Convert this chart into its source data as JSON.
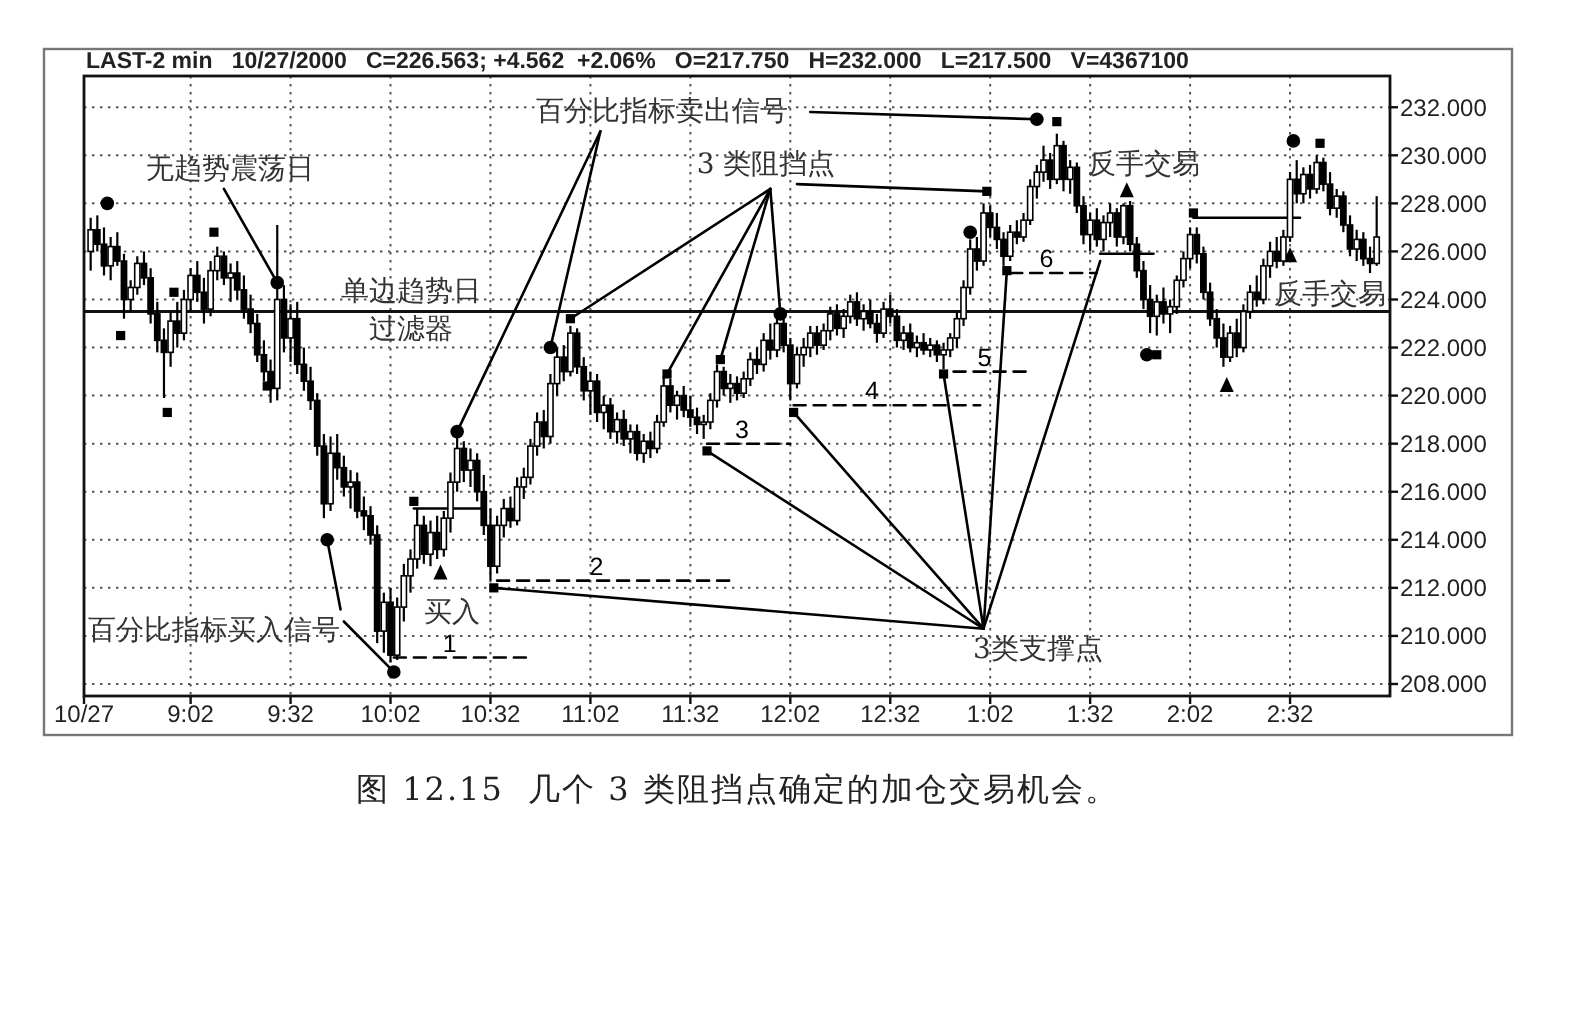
{
  "chart_data": {
    "type": "candlestick",
    "title": "图 12.15  几个 3 类阻挡点确定的加仓交易机会。",
    "subtitle": "LAST-2 min   10/27/2000   C=226.563; +4.562  +2.06%   O=217.750   H=232.000   L=217.500   V=4367100",
    "color": "#000000",
    "x": [
      "2000-10-27T08:32",
      "2000-10-27T08:34",
      "2000-10-27T08:36",
      "2000-10-27T08:38",
      "2000-10-27T08:40",
      "2000-10-27T08:42",
      "2000-10-27T08:44",
      "2000-10-27T08:46",
      "2000-10-27T08:48",
      "2000-10-27T08:50",
      "2000-10-27T08:52",
      "2000-10-27T08:54",
      "2000-10-27T08:56",
      "2000-10-27T08:58",
      "2000-10-27T09:00",
      "2000-10-27T09:02",
      "2000-10-27T09:04",
      "2000-10-27T09:06",
      "2000-10-27T09:08",
      "2000-10-27T09:10",
      "2000-10-27T09:12",
      "2000-10-27T09:14",
      "2000-10-27T09:16",
      "2000-10-27T09:18",
      "2000-10-27T09:20",
      "2000-10-27T09:22",
      "2000-10-27T09:24",
      "2000-10-27T09:26",
      "2000-10-27T09:28",
      "2000-10-27T09:30",
      "2000-10-27T09:32",
      "2000-10-27T09:34",
      "2000-10-27T09:36",
      "2000-10-27T09:38",
      "2000-10-27T09:40",
      "2000-10-27T09:42",
      "2000-10-27T09:44",
      "2000-10-27T09:46",
      "2000-10-27T09:48",
      "2000-10-27T09:50",
      "2000-10-27T09:52",
      "2000-10-27T09:54",
      "2000-10-27T09:56",
      "2000-10-27T09:58",
      "2000-10-27T10:00",
      "2000-10-27T10:02",
      "2000-10-27T10:04",
      "2000-10-27T10:06",
      "2000-10-27T10:08",
      "2000-10-27T10:10",
      "2000-10-27T10:12",
      "2000-10-27T10:14",
      "2000-10-27T10:16",
      "2000-10-27T10:18",
      "2000-10-27T10:20",
      "2000-10-27T10:22",
      "2000-10-27T10:24",
      "2000-10-27T10:26",
      "2000-10-27T10:28",
      "2000-10-27T10:30",
      "2000-10-27T10:32",
      "2000-10-27T10:34",
      "2000-10-27T10:36",
      "2000-10-27T10:38",
      "2000-10-27T10:40",
      "2000-10-27T10:42",
      "2000-10-27T10:44",
      "2000-10-27T10:46",
      "2000-10-27T10:48",
      "2000-10-27T10:50",
      "2000-10-27T10:52",
      "2000-10-27T10:54",
      "2000-10-27T10:56",
      "2000-10-27T10:58",
      "2000-10-27T11:00",
      "2000-10-27T11:02",
      "2000-10-27T11:04",
      "2000-10-27T11:06",
      "2000-10-27T11:08",
      "2000-10-27T11:10",
      "2000-10-27T11:12",
      "2000-10-27T11:14",
      "2000-10-27T11:16",
      "2000-10-27T11:18",
      "2000-10-27T11:20",
      "2000-10-27T11:22",
      "2000-10-27T11:24",
      "2000-10-27T11:26",
      "2000-10-27T11:28",
      "2000-10-27T11:30",
      "2000-10-27T11:32",
      "2000-10-27T11:34",
      "2000-10-27T11:36",
      "2000-10-27T11:38",
      "2000-10-27T11:40",
      "2000-10-27T11:42",
      "2000-10-27T11:44",
      "2000-10-27T11:46",
      "2000-10-27T11:48",
      "2000-10-27T11:50",
      "2000-10-27T11:52",
      "2000-10-27T11:54",
      "2000-10-27T11:56",
      "2000-10-27T11:58",
      "2000-10-27T12:00",
      "2000-10-27T12:02",
      "2000-10-27T12:04",
      "2000-10-27T12:06",
      "2000-10-27T12:08",
      "2000-10-27T12:10",
      "2000-10-27T12:12",
      "2000-10-27T12:14",
      "2000-10-27T12:16",
      "2000-10-27T12:18",
      "2000-10-27T12:20",
      "2000-10-27T12:22",
      "2000-10-27T12:24",
      "2000-10-27T12:26",
      "2000-10-27T12:28",
      "2000-10-27T12:30",
      "2000-10-27T12:32",
      "2000-10-27T12:34",
      "2000-10-27T12:36",
      "2000-10-27T12:38",
      "2000-10-27T12:40",
      "2000-10-27T12:42",
      "2000-10-27T12:44",
      "2000-10-27T12:46",
      "2000-10-27T12:48",
      "2000-10-27T12:50",
      "2000-10-27T12:52",
      "2000-10-27T12:54",
      "2000-10-27T12:56",
      "2000-10-27T12:58",
      "2000-10-27T13:00",
      "2000-10-27T13:02",
      "2000-10-27T13:04",
      "2000-10-27T13:06",
      "2000-10-27T13:08",
      "2000-10-27T13:10",
      "2000-10-27T13:12",
      "2000-10-27T13:14",
      "2000-10-27T13:16",
      "2000-10-27T13:18",
      "2000-10-27T13:20",
      "2000-10-27T13:22",
      "2000-10-27T13:24",
      "2000-10-27T13:26",
      "2000-10-27T13:28",
      "2000-10-27T13:30",
      "2000-10-27T13:32",
      "2000-10-27T13:34",
      "2000-10-27T13:36",
      "2000-10-27T13:38",
      "2000-10-27T13:40",
      "2000-10-27T13:42",
      "2000-10-27T13:44",
      "2000-10-27T13:46",
      "2000-10-27T13:48",
      "2000-10-27T13:50",
      "2000-10-27T13:52",
      "2000-10-27T13:54",
      "2000-10-27T13:56",
      "2000-10-27T13:58",
      "2000-10-27T14:00",
      "2000-10-27T14:02",
      "2000-10-27T14:04",
      "2000-10-27T14:06",
      "2000-10-27T14:08",
      "2000-10-27T14:10",
      "2000-10-27T14:12",
      "2000-10-27T14:14",
      "2000-10-27T14:16",
      "2000-10-27T14:18",
      "2000-10-27T14:20",
      "2000-10-27T14:22",
      "2000-10-27T14:24",
      "2000-10-27T14:26",
      "2000-10-27T14:28",
      "2000-10-27T14:30",
      "2000-10-27T14:32",
      "2000-10-27T14:34",
      "2000-10-27T14:36",
      "2000-10-27T14:38",
      "2000-10-27T14:40",
      "2000-10-27T14:42",
      "2000-10-27T14:44",
      "2000-10-27T14:46",
      "2000-10-27T14:48",
      "2000-10-27T14:50",
      "2000-10-27T14:52",
      "2000-10-27T14:54",
      "2000-10-27T14:56",
      "2000-10-27T14:58"
    ],
    "ohlc": [
      [
        226.0,
        227.4,
        225.2,
        226.9
      ],
      [
        226.9,
        227.5,
        226.0,
        226.3
      ],
      [
        226.3,
        227.0,
        225.0,
        225.4
      ],
      [
        225.4,
        226.6,
        224.8,
        226.2
      ],
      [
        226.2,
        226.8,
        225.4,
        225.6
      ],
      [
        225.6,
        225.9,
        223.2,
        224.0
      ],
      [
        224.0,
        224.8,
        223.5,
        224.5
      ],
      [
        224.5,
        225.8,
        224.2,
        225.5
      ],
      [
        225.5,
        226.0,
        224.6,
        224.9
      ],
      [
        224.9,
        225.3,
        223.0,
        223.4
      ],
      [
        223.4,
        223.9,
        221.8,
        222.3
      ],
      [
        222.3,
        222.8,
        219.9,
        221.8
      ],
      [
        221.8,
        223.5,
        221.2,
        223.1
      ],
      [
        223.1,
        223.9,
        222.0,
        222.6
      ],
      [
        222.6,
        224.4,
        222.3,
        224.0
      ],
      [
        224.0,
        225.3,
        223.5,
        225.0
      ],
      [
        225.0,
        225.6,
        223.9,
        224.3
      ],
      [
        224.3,
        224.9,
        223.0,
        223.6
      ],
      [
        223.6,
        225.6,
        223.3,
        225.2
      ],
      [
        225.2,
        226.2,
        224.8,
        225.8
      ],
      [
        225.8,
        226.0,
        224.6,
        224.9
      ],
      [
        224.9,
        225.5,
        223.9,
        225.1
      ],
      [
        225.1,
        225.6,
        224.0,
        224.4
      ],
      [
        224.4,
        225.0,
        223.2,
        223.6
      ],
      [
        223.6,
        224.2,
        222.6,
        223.0
      ],
      [
        223.0,
        223.4,
        221.4,
        221.7
      ],
      [
        221.7,
        222.3,
        220.6,
        221.0
      ],
      [
        221.0,
        221.5,
        219.7,
        220.3
      ],
      [
        220.3,
        227.1,
        219.8,
        224.0
      ],
      [
        224.0,
        224.6,
        221.8,
        222.4
      ],
      [
        222.4,
        223.8,
        221.4,
        223.2
      ],
      [
        223.2,
        223.9,
        220.9,
        221.3
      ],
      [
        221.3,
        222.0,
        220.2,
        220.6
      ],
      [
        220.6,
        221.2,
        219.4,
        219.8
      ],
      [
        219.8,
        220.1,
        217.5,
        217.9
      ],
      [
        217.9,
        218.4,
        214.9,
        215.5
      ],
      [
        215.5,
        218.3,
        215.2,
        217.6
      ],
      [
        217.6,
        218.4,
        216.5,
        217.0
      ],
      [
        217.0,
        217.5,
        215.8,
        216.2
      ],
      [
        216.2,
        216.9,
        215.3,
        216.4
      ],
      [
        216.4,
        216.8,
        214.9,
        215.2
      ],
      [
        215.2,
        215.8,
        214.4,
        215.0
      ],
      [
        215.0,
        215.4,
        213.8,
        214.2
      ],
      [
        214.2,
        214.6,
        209.7,
        210.2
      ],
      [
        210.2,
        211.8,
        209.3,
        211.4
      ],
      [
        211.4,
        212.0,
        208.9,
        209.2
      ],
      [
        209.2,
        211.6,
        209.0,
        211.2
      ],
      [
        211.2,
        213.0,
        210.6,
        212.5
      ],
      [
        212.5,
        213.6,
        211.8,
        213.2
      ],
      [
        213.2,
        215.3,
        212.8,
        214.6
      ],
      [
        214.6,
        215.0,
        213.0,
        213.4
      ],
      [
        213.4,
        214.8,
        212.9,
        214.3
      ],
      [
        214.3,
        215.0,
        213.2,
        213.6
      ],
      [
        213.6,
        215.2,
        213.3,
        214.9
      ],
      [
        214.9,
        216.8,
        214.3,
        216.4
      ],
      [
        216.4,
        218.3,
        216.0,
        217.8
      ],
      [
        217.8,
        218.1,
        216.4,
        216.9
      ],
      [
        216.9,
        217.8,
        216.2,
        217.3
      ],
      [
        217.3,
        217.6,
        215.6,
        216.0
      ],
      [
        216.0,
        216.7,
        214.2,
        214.6
      ],
      [
        214.6,
        215.3,
        212.3,
        212.9
      ],
      [
        212.9,
        215.0,
        212.6,
        214.6
      ],
      [
        214.6,
        215.7,
        214.1,
        215.3
      ],
      [
        215.3,
        215.8,
        214.5,
        214.8
      ],
      [
        214.8,
        216.6,
        214.6,
        216.2
      ],
      [
        216.2,
        217.0,
        215.7,
        216.6
      ],
      [
        216.6,
        218.2,
        216.3,
        217.9
      ],
      [
        217.9,
        219.3,
        217.5,
        218.9
      ],
      [
        218.9,
        219.4,
        217.8,
        218.3
      ],
      [
        218.3,
        220.9,
        218.0,
        220.5
      ],
      [
        220.5,
        222.0,
        220.0,
        221.6
      ],
      [
        221.6,
        222.1,
        220.6,
        221.0
      ],
      [
        221.0,
        222.9,
        220.8,
        222.6
      ],
      [
        222.6,
        222.8,
        220.9,
        221.2
      ],
      [
        221.2,
        221.6,
        219.8,
        220.2
      ],
      [
        220.2,
        221.0,
        219.2,
        220.6
      ],
      [
        220.6,
        220.9,
        218.9,
        219.3
      ],
      [
        219.3,
        220.0,
        218.6,
        219.6
      ],
      [
        219.6,
        219.9,
        218.2,
        218.5
      ],
      [
        218.5,
        219.3,
        218.0,
        219.0
      ],
      [
        219.0,
        219.4,
        217.9,
        218.2
      ],
      [
        218.2,
        218.8,
        217.6,
        218.5
      ],
      [
        218.5,
        218.8,
        217.3,
        217.6
      ],
      [
        217.6,
        218.4,
        217.2,
        218.1
      ],
      [
        218.1,
        218.5,
        217.4,
        217.8
      ],
      [
        217.8,
        219.2,
        217.6,
        218.9
      ],
      [
        218.9,
        220.8,
        218.7,
        220.4
      ],
      [
        220.4,
        220.7,
        219.3,
        219.6
      ],
      [
        219.6,
        220.2,
        219.0,
        220.0
      ],
      [
        220.0,
        220.4,
        219.1,
        219.4
      ],
      [
        219.4,
        220.0,
        218.7,
        219.1
      ],
      [
        219.1,
        219.5,
        218.4,
        218.8
      ],
      [
        218.8,
        219.2,
        218.2,
        218.9
      ],
      [
        218.9,
        220.1,
        218.6,
        219.8
      ],
      [
        219.8,
        221.3,
        219.5,
        221.0
      ],
      [
        221.0,
        221.2,
        220.0,
        220.3
      ],
      [
        220.3,
        220.9,
        219.7,
        220.5
      ],
      [
        220.5,
        220.8,
        219.8,
        220.1
      ],
      [
        220.1,
        221.0,
        219.9,
        220.7
      ],
      [
        220.7,
        221.8,
        220.4,
        221.5
      ],
      [
        221.5,
        222.0,
        220.9,
        221.3
      ],
      [
        221.3,
        222.6,
        221.0,
        222.3
      ],
      [
        222.3,
        223.0,
        221.5,
        221.9
      ],
      [
        221.9,
        223.3,
        221.6,
        223.0
      ],
      [
        223.0,
        223.4,
        221.8,
        222.1
      ],
      [
        222.1,
        222.4,
        219.8,
        220.5
      ],
      [
        220.5,
        222.0,
        220.3,
        221.7
      ],
      [
        221.7,
        222.4,
        221.2,
        222.0
      ],
      [
        222.0,
        222.9,
        221.6,
        222.6
      ],
      [
        222.6,
        222.9,
        221.7,
        222.1
      ],
      [
        222.1,
        223.0,
        221.9,
        222.7
      ],
      [
        222.7,
        223.7,
        222.3,
        223.4
      ],
      [
        223.4,
        223.8,
        222.5,
        222.8
      ],
      [
        222.8,
        223.6,
        222.4,
        223.3
      ],
      [
        223.3,
        224.2,
        223.0,
        223.9
      ],
      [
        223.9,
        224.3,
        222.9,
        223.2
      ],
      [
        223.2,
        223.8,
        222.7,
        223.5
      ],
      [
        223.5,
        224.0,
        222.8,
        223.0
      ],
      [
        223.0,
        223.4,
        222.2,
        222.6
      ],
      [
        222.6,
        223.9,
        222.4,
        223.6
      ],
      [
        223.6,
        224.2,
        223.0,
        223.3
      ],
      [
        223.3,
        223.6,
        222.0,
        222.3
      ],
      [
        222.3,
        222.9,
        221.9,
        222.6
      ],
      [
        222.6,
        223.0,
        221.8,
        222.0
      ],
      [
        222.0,
        222.5,
        221.6,
        222.2
      ],
      [
        222.2,
        222.6,
        221.7,
        221.9
      ],
      [
        221.9,
        222.4,
        221.6,
        222.1
      ],
      [
        222.1,
        222.3,
        221.4,
        221.7
      ],
      [
        221.7,
        222.2,
        221.1,
        221.9
      ],
      [
        221.9,
        222.6,
        221.6,
        222.4
      ],
      [
        222.4,
        223.5,
        222.0,
        223.2
      ],
      [
        223.2,
        224.8,
        222.9,
        224.5
      ],
      [
        224.5,
        226.5,
        224.2,
        226.1
      ],
      [
        226.1,
        226.6,
        225.2,
        225.6
      ],
      [
        225.6,
        228.0,
        225.4,
        227.6
      ],
      [
        227.6,
        227.9,
        226.6,
        227.0
      ],
      [
        227.0,
        227.6,
        226.1,
        226.5
      ],
      [
        226.5,
        226.8,
        225.4,
        225.8
      ],
      [
        225.8,
        227.1,
        225.6,
        226.8
      ],
      [
        226.8,
        227.3,
        226.3,
        226.6
      ],
      [
        226.6,
        227.6,
        226.4,
        227.3
      ],
      [
        227.3,
        229.0,
        227.1,
        228.7
      ],
      [
        228.7,
        229.6,
        228.2,
        229.3
      ],
      [
        229.3,
        230.4,
        228.9,
        229.8
      ],
      [
        229.8,
        230.1,
        228.6,
        229.0
      ],
      [
        229.0,
        230.9,
        228.8,
        230.4
      ],
      [
        230.4,
        230.6,
        228.5,
        229.0
      ],
      [
        229.0,
        229.8,
        228.4,
        229.5
      ],
      [
        229.5,
        229.7,
        227.6,
        227.9
      ],
      [
        227.9,
        228.3,
        226.3,
        226.7
      ],
      [
        226.7,
        227.6,
        226.0,
        227.3
      ],
      [
        227.3,
        227.8,
        226.2,
        226.5
      ],
      [
        226.5,
        227.5,
        226.0,
        227.2
      ],
      [
        227.2,
        228.0,
        226.6,
        227.6
      ],
      [
        227.6,
        227.8,
        226.2,
        226.6
      ],
      [
        226.6,
        228.0,
        226.3,
        227.9
      ],
      [
        227.9,
        228.1,
        226.0,
        226.3
      ],
      [
        226.3,
        226.6,
        224.9,
        225.2
      ],
      [
        225.2,
        225.6,
        223.6,
        224.0
      ],
      [
        224.0,
        224.6,
        222.6,
        223.3
      ],
      [
        223.3,
        224.2,
        222.5,
        223.9
      ],
      [
        223.9,
        224.5,
        223.0,
        223.4
      ],
      [
        223.4,
        224.0,
        222.6,
        223.7
      ],
      [
        223.7,
        225.0,
        223.4,
        224.8
      ],
      [
        224.8,
        226.0,
        224.5,
        225.7
      ],
      [
        225.7,
        227.0,
        225.3,
        226.7
      ],
      [
        226.7,
        227.0,
        225.5,
        225.9
      ],
      [
        225.9,
        226.2,
        224.0,
        224.3
      ],
      [
        224.3,
        224.7,
        222.9,
        223.2
      ],
      [
        223.2,
        223.6,
        222.0,
        222.4
      ],
      [
        222.4,
        223.0,
        221.2,
        221.6
      ],
      [
        221.6,
        222.9,
        221.4,
        222.6
      ],
      [
        222.6,
        223.2,
        221.6,
        222.0
      ],
      [
        222.0,
        223.8,
        221.8,
        223.5
      ],
      [
        223.5,
        224.6,
        223.2,
        224.3
      ],
      [
        224.3,
        225.0,
        223.7,
        224.0
      ],
      [
        224.0,
        225.7,
        223.8,
        225.4
      ],
      [
        225.4,
        226.4,
        224.9,
        226.0
      ],
      [
        226.0,
        226.6,
        225.3,
        225.6
      ],
      [
        225.6,
        226.9,
        225.4,
        226.6
      ],
      [
        226.6,
        229.3,
        226.4,
        229.0
      ],
      [
        229.0,
        229.8,
        228.0,
        228.4
      ],
      [
        228.4,
        229.5,
        228.0,
        229.2
      ],
      [
        229.2,
        229.6,
        228.2,
        228.6
      ],
      [
        228.6,
        230.0,
        228.4,
        229.7
      ],
      [
        229.7,
        229.9,
        228.5,
        228.8
      ],
      [
        228.8,
        229.3,
        227.5,
        227.8
      ],
      [
        227.8,
        228.6,
        227.4,
        228.3
      ],
      [
        228.3,
        228.5,
        226.8,
        227.1
      ],
      [
        227.1,
        227.5,
        225.8,
        226.1
      ],
      [
        226.1,
        226.9,
        225.6,
        226.5
      ],
      [
        226.5,
        226.8,
        225.4,
        225.7
      ],
      [
        225.7,
        226.2,
        225.1,
        225.5
      ],
      [
        225.5,
        228.3,
        225.4,
        226.6
      ]
    ],
    "series": [
      {
        "type": "line",
        "color": "#000000",
        "x": [
          "2000-10-27T09:12",
          "2000-10-27T09:28"
        ],
        "values": [
          228.6,
          224.7
        ]
      },
      {
        "type": "line",
        "color": "#000000",
        "x": [
          "2000-10-27T11:05",
          "2000-10-27T10:50"
        ],
        "values": [
          231.0,
          222.0
        ]
      },
      {
        "type": "line",
        "color": "#000000",
        "x": [
          "2000-10-27T11:05",
          "2000-10-27T10:22"
        ],
        "values": [
          231.0,
          218.5
        ]
      },
      {
        "type": "line",
        "color": "#000000",
        "x": [
          "2000-10-27T12:08",
          "2000-10-27T13:16"
        ],
        "values": [
          231.8,
          231.5
        ]
      },
      {
        "type": "line",
        "color": "#000000",
        "x": [
          "2000-10-27T11:56",
          "2000-10-27T10:56"
        ],
        "values": [
          228.6,
          223.2
        ]
      },
      {
        "type": "line",
        "color": "#000000",
        "x": [
          "2000-10-27T11:56",
          "2000-10-27T11:25"
        ],
        "values": [
          228.6,
          220.9
        ]
      },
      {
        "type": "line",
        "color": "#000000",
        "x": [
          "2000-10-27T11:56",
          "2000-10-27T11:41"
        ],
        "values": [
          228.6,
          221.5
        ]
      },
      {
        "type": "line",
        "color": "#000000",
        "x": [
          "2000-10-27T11:56",
          "2000-10-27T11:59"
        ],
        "values": [
          228.6,
          223.4
        ]
      },
      {
        "type": "line",
        "color": "#000000",
        "x": [
          "2000-10-27T12:04",
          "2000-10-27T13:01"
        ],
        "values": [
          228.8,
          228.5
        ]
      },
      {
        "type": "line",
        "color": "#000000",
        "x": [
          "2000-10-27T09:48",
          "2000-10-27T10:03"
        ],
        "values": [
          210.6,
          208.5
        ]
      },
      {
        "type": "line",
        "color": "#000000",
        "x": [
          "2000-10-27T09:47",
          "2000-10-27T09:43"
        ],
        "values": [
          211.1,
          214.0
        ]
      },
      {
        "type": "line",
        "color": "#000000",
        "x": [
          "2000-10-27T13:00",
          "2000-10-27T10:33"
        ],
        "values": [
          210.3,
          212.0
        ]
      },
      {
        "type": "line",
        "color": "#000000",
        "x": [
          "2000-10-27T13:00",
          "2000-10-27T11:37"
        ],
        "values": [
          210.3,
          217.7
        ]
      },
      {
        "type": "line",
        "color": "#000000",
        "x": [
          "2000-10-27T13:00",
          "2000-10-27T12:03"
        ],
        "values": [
          210.3,
          219.3
        ]
      },
      {
        "type": "line",
        "color": "#000000",
        "x": [
          "2000-10-27T13:00",
          "2000-10-27T12:48"
        ],
        "values": [
          210.3,
          220.9
        ]
      },
      {
        "type": "line",
        "color": "#000000",
        "x": [
          "2000-10-27T13:00",
          "2000-10-27T13:07"
        ],
        "values": [
          210.3,
          225.2
        ]
      },
      {
        "type": "line",
        "color": "#000000",
        "x": [
          "2000-10-27T13:00",
          "2000-10-27T13:35"
        ],
        "values": [
          210.3,
          225.6
        ]
      },
      {
        "type": "line",
        "color": "#000000",
        "x": [
          "2000-10-27T10:09",
          "2000-10-27T10:30"
        ],
        "values": [
          215.3,
          215.3
        ]
      },
      {
        "type": "line",
        "color": "#000000",
        "x": [
          "2000-10-27T13:35",
          "2000-10-27T13:51"
        ],
        "values": [
          225.9,
          225.9
        ]
      },
      {
        "type": "line",
        "color": "#000000",
        "x": [
          "2000-10-27T14:03",
          "2000-10-27T14:35"
        ],
        "values": [
          227.4,
          227.4
        ]
      },
      {
        "type": "line",
        "name": "1",
        "color": "#000000",
        "line_style": "dashed",
        "x": [
          "2000-10-27T10:03",
          "2000-10-27T10:43"
        ],
        "values": [
          209.1,
          209.1
        ]
      },
      {
        "type": "line",
        "name": "2",
        "color": "#000000",
        "line_style": "dashed",
        "x": [
          "2000-10-27T10:34",
          "2000-10-27T11:45"
        ],
        "values": [
          212.3,
          212.3
        ]
      },
      {
        "type": "line",
        "name": "3",
        "color": "#000000",
        "line_style": "dashed",
        "x": [
          "2000-10-27T11:37",
          "2000-10-27T12:02"
        ],
        "values": [
          218.0,
          218.0
        ]
      },
      {
        "type": "line",
        "name": "4",
        "color": "#000000",
        "line_style": "dashed",
        "x": [
          "2000-10-27T12:03",
          "2000-10-27T12:59"
        ],
        "values": [
          219.6,
          219.6
        ]
      },
      {
        "type": "line",
        "name": "5",
        "color": "#000000",
        "line_style": "dashed",
        "x": [
          "2000-10-27T12:51",
          "2000-10-27T13:13"
        ],
        "values": [
          221.0,
          221.0
        ]
      },
      {
        "type": "line",
        "name": "6",
        "color": "#000000",
        "line_style": "dashed",
        "x": [
          "2000-10-27T13:08",
          "2000-10-27T13:34"
        ],
        "values": [
          225.1,
          225.1
        ]
      },
      {
        "type": "scatter",
        "color": "#000000",
        "marker": "circle",
        "x": [
          "2000-10-27T08:37",
          "2000-10-27T09:28",
          "2000-10-27T09:43",
          "2000-10-27T10:03",
          "2000-10-27T10:22",
          "2000-10-27T10:50",
          "2000-10-27T11:59",
          "2000-10-27T12:56",
          "2000-10-27T13:16",
          "2000-10-27T13:49",
          "2000-10-27T14:33"
        ],
        "values": [
          228.0,
          224.7,
          214.0,
          208.5,
          218.5,
          222.0,
          223.4,
          226.8,
          231.5,
          221.7,
          230.6
        ]
      },
      {
        "type": "scatter",
        "color": "#000000",
        "marker": "square",
        "x": [
          "2000-10-27T08:41",
          "2000-10-27T08:55",
          "2000-10-27T08:57",
          "2000-10-27T09:09",
          "2000-10-27T09:25",
          "2000-10-27T10:09",
          "2000-10-27T10:33",
          "2000-10-27T10:56",
          "2000-10-27T11:25",
          "2000-10-27T11:37",
          "2000-10-27T11:41",
          "2000-10-27T12:03",
          "2000-10-27T12:48",
          "2000-10-27T13:01",
          "2000-10-27T13:07",
          "2000-10-27T13:22",
          "2000-10-27T13:52",
          "2000-10-27T14:03",
          "2000-10-27T14:41"
        ],
        "values": [
          222.5,
          219.3,
          224.3,
          226.8,
          220.4,
          215.6,
          212.0,
          223.2,
          220.9,
          217.7,
          221.5,
          219.3,
          220.9,
          228.5,
          225.2,
          231.4,
          221.7,
          227.6,
          230.5
        ]
      },
      {
        "type": "scatter",
        "color": "#000000",
        "marker": "triangle",
        "x": [
          "2000-10-27T10:17",
          "2000-10-27T13:43",
          "2000-10-27T14:13",
          "2000-10-27T14:32"
        ],
        "values": [
          212.6,
          228.5,
          220.4,
          225.8
        ]
      }
    ],
    "ref_lines": [
      {
        "axis": "y",
        "value": 223.5,
        "label": "单边趋势日过滤器"
      }
    ],
    "annotations": [
      "无趋势震荡日",
      "百分比指标卖出信号",
      "3 类阻挡点",
      "反手交易",
      "反手交易",
      "买入",
      "百分比指标买入信号",
      "3类支撑点"
    ],
    "xlim": [
      "2000-10-27T08:30",
      "2000-10-27T15:02"
    ],
    "ylim": [
      207.5,
      233.3
    ],
    "xticks": [
      {
        "value": "2000-10-27T08:30",
        "label": "10/27"
      },
      {
        "value": "2000-10-27T09:02",
        "label": "9:02"
      },
      {
        "value": "2000-10-27T09:32",
        "label": "9:32"
      },
      {
        "value": "2000-10-27T10:02",
        "label": "10:02"
      },
      {
        "value": "2000-10-27T10:32",
        "label": "10:32"
      },
      {
        "value": "2000-10-27T11:02",
        "label": "11:02"
      },
      {
        "value": "2000-10-27T11:32",
        "label": "11:32"
      },
      {
        "value": "2000-10-27T12:02",
        "label": "12:02"
      },
      {
        "value": "2000-10-27T12:32",
        "label": "12:32"
      },
      {
        "value": "2000-10-27T13:02",
        "label": "1:02"
      },
      {
        "value": "2000-10-27T13:32",
        "label": "1:32"
      },
      {
        "value": "2000-10-27T14:02",
        "label": "2:02"
      },
      {
        "value": "2000-10-27T14:32",
        "label": "2:32"
      }
    ],
    "yticks": [
      {
        "value": 208,
        "label": "208.000"
      },
      {
        "value": 210,
        "label": "210.000"
      },
      {
        "value": 212,
        "label": "212.000"
      },
      {
        "value": 214,
        "label": "214.000"
      },
      {
        "value": 216,
        "label": "216.000"
      },
      {
        "value": 218,
        "label": "218.000"
      },
      {
        "value": 220,
        "label": "220.000"
      },
      {
        "value": 222,
        "label": "222.000"
      },
      {
        "value": 224,
        "label": "224.000"
      },
      {
        "value": 226,
        "label": "226.000"
      },
      {
        "value": 228,
        "label": "228.000"
      },
      {
        "value": 230,
        "label": "230.000"
      },
      {
        "value": 232,
        "label": "232.000"
      }
    ],
    "grid": true
  }
}
